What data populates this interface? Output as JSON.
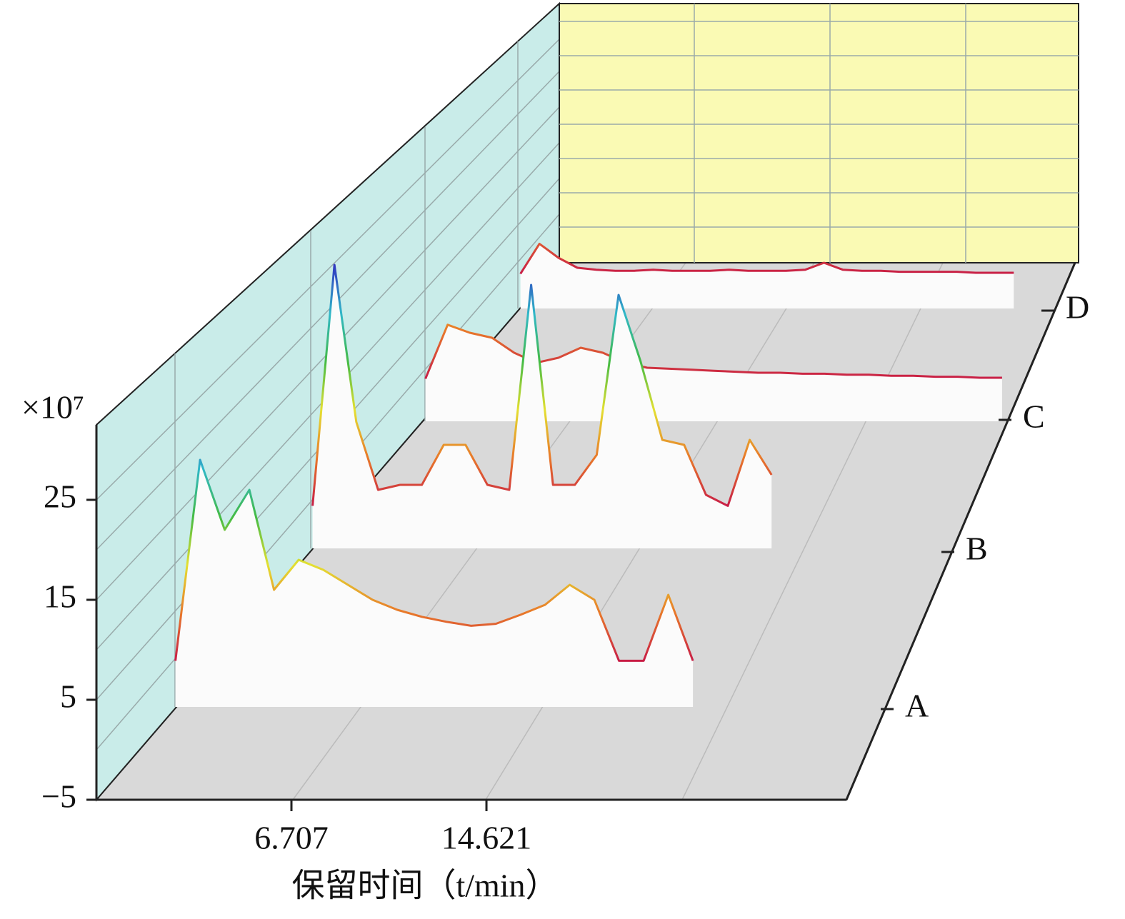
{
  "chart_data": {
    "type": "waterfall",
    "y_unit_label": "×10⁷",
    "x_label": "保留时间（t/min）",
    "x": [
      2,
      3,
      4,
      5,
      6,
      7,
      8,
      9,
      10,
      11,
      12,
      13,
      14,
      15,
      16,
      17,
      18,
      19,
      20,
      21,
      22,
      23,
      24,
      25,
      26,
      27,
      28
    ],
    "xlim": [
      -1.207,
      29.23
    ],
    "xticks": [
      6.707,
      14.621
    ],
    "ylim": [
      -5,
      32.5
    ],
    "yticks": [
      {
        "value": -5,
        "label": "−5"
      },
      5,
      15,
      25
    ],
    "colormap": [
      "#c81e46",
      "#e8782a",
      "#e4e032",
      "#44bb44",
      "#30b8c8",
      "#3038c0"
    ],
    "series": [
      {
        "name": "A",
        "values": [
          8.9,
          29,
          22,
          26,
          16,
          19,
          18,
          16.5,
          15,
          14,
          13.3,
          12.8,
          12.4,
          12.6,
          13.5,
          14.5,
          16.5,
          15,
          8.9,
          8.9,
          15.5,
          8.9,
          null,
          null,
          null,
          null,
          null
        ]
      },
      {
        "name": "B",
        "values": [
          8.9,
          33,
          17.3,
          10.5,
          11,
          11,
          15,
          15,
          11,
          10.5,
          31,
          11,
          11,
          14,
          30,
          23.4,
          15.5,
          15,
          10,
          8.9,
          15.5,
          12,
          null,
          null,
          null,
          null,
          null
        ]
      },
      {
        "name": "C",
        "values": [
          8.9,
          14.3,
          13.5,
          13,
          11.5,
          10.5,
          11,
          12,
          11.5,
          10.5,
          10,
          9.9,
          9.8,
          9.7,
          9.6,
          9.5,
          9.5,
          9.4,
          9.4,
          9.3,
          9.3,
          9.2,
          9.2,
          9.1,
          9.1,
          9,
          9
        ]
      },
      {
        "name": "D",
        "values": [
          8.9,
          11.9,
          10.5,
          9.5,
          9.3,
          9.2,
          9.2,
          9.3,
          9.2,
          9.2,
          9.2,
          9.3,
          9.2,
          9.2,
          9.2,
          9.3,
          10,
          9.3,
          9.2,
          9.2,
          9.1,
          9.1,
          9.1,
          9.1,
          9,
          9,
          9
        ]
      }
    ]
  }
}
